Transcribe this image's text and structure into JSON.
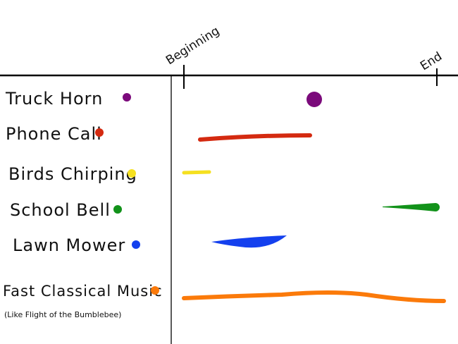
{
  "timeline": {
    "start_label": "Beginning",
    "end_label": "End"
  },
  "sounds": [
    {
      "label": "Truck Horn",
      "color": "#7b0a7b"
    },
    {
      "label": "Phone Call",
      "color": "#d42a10"
    },
    {
      "label": "Birds Chirping",
      "color": "#f5e020"
    },
    {
      "label": "School Bell",
      "color": "#12921a"
    },
    {
      "label": "Lawn Mower",
      "color": "#1440ee"
    },
    {
      "label": "Fast Classical Music",
      "sublabel": "(Like Flight of the Bumblebee)",
      "color": "#fb7a0a"
    }
  ]
}
